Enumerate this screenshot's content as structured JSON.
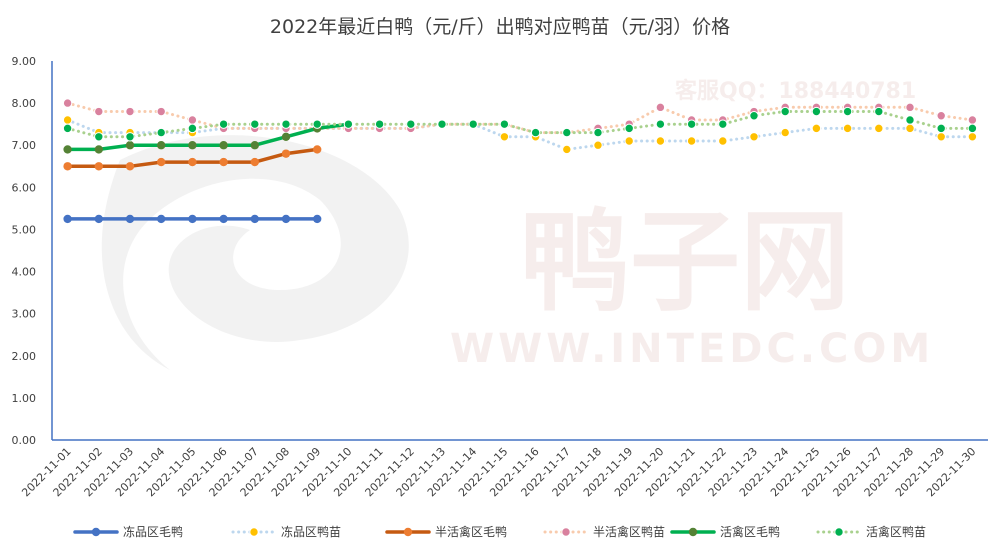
{
  "chart_data": {
    "type": "line",
    "title": "2022年最近白鸭（元/斤）出鸭对应鸭苗（元/羽）价格",
    "xlabel": "",
    "ylabel": "",
    "ylim": [
      0,
      9
    ],
    "yticks": [
      "0.00",
      "1.00",
      "2.00",
      "3.00",
      "4.00",
      "5.00",
      "6.00",
      "7.00",
      "8.00",
      "9.00"
    ],
    "grid": false,
    "legend_position": "bottom",
    "categories": [
      "2022-11-01",
      "2022-11-02",
      "2022-11-03",
      "2022-11-04",
      "2022-11-05",
      "2022-11-06",
      "2022-11-07",
      "2022-11-08",
      "2022-11-09",
      "2022-11-10",
      "2022-11-11",
      "2022-11-12",
      "2022-11-13",
      "2022-11-14",
      "2022-11-15",
      "2022-11-16",
      "2022-11-17",
      "2022-11-18",
      "2022-11-19",
      "2022-11-20",
      "2022-11-21",
      "2022-11-22",
      "2022-11-23",
      "2022-11-24",
      "2022-11-25",
      "2022-11-26",
      "2022-11-27",
      "2022-11-28",
      "2022-11-29",
      "2022-11-30"
    ],
    "series": [
      {
        "name": "冻品区毛鸭",
        "style": "solid",
        "color": "#4472c4",
        "marker": "#4472c4",
        "values": [
          5.25,
          5.25,
          5.25,
          5.25,
          5.25,
          5.25,
          5.25,
          5.25,
          5.25,
          null,
          null,
          null,
          null,
          null,
          null,
          null,
          null,
          null,
          null,
          null,
          null,
          null,
          null,
          null,
          null,
          null,
          null,
          null,
          null,
          null
        ]
      },
      {
        "name": "冻品区鸭苗",
        "style": "dotted",
        "color": "#bdd7ee",
        "marker": "#ffc000",
        "values": [
          7.6,
          7.3,
          7.3,
          7.3,
          7.3,
          7.4,
          7.4,
          7.4,
          7.4,
          7.4,
          7.4,
          7.4,
          7.5,
          7.5,
          7.2,
          7.2,
          6.9,
          7.0,
          7.1,
          7.1,
          7.1,
          7.1,
          7.2,
          7.3,
          7.4,
          7.4,
          7.4,
          7.4,
          7.2,
          7.2
        ]
      },
      {
        "name": "半活禽区毛鸭",
        "style": "solid",
        "color": "#c55a11",
        "marker": "#ed7d31",
        "values": [
          6.5,
          6.5,
          6.5,
          6.6,
          6.6,
          6.6,
          6.6,
          6.8,
          6.9,
          null,
          null,
          null,
          null,
          null,
          null,
          null,
          null,
          null,
          null,
          null,
          null,
          null,
          null,
          null,
          null,
          null,
          null,
          null,
          null,
          null
        ]
      },
      {
        "name": "半活禽区鸭苗",
        "style": "dotted",
        "color": "#f8cbad",
        "marker": "#d9819e",
        "values": [
          8.0,
          7.8,
          7.8,
          7.8,
          7.6,
          7.4,
          7.4,
          7.4,
          7.4,
          7.4,
          7.4,
          7.4,
          7.5,
          7.5,
          7.5,
          7.3,
          7.3,
          7.4,
          7.5,
          7.9,
          7.6,
          7.6,
          7.8,
          7.9,
          7.9,
          7.9,
          7.9,
          7.9,
          7.7,
          7.6
        ]
      },
      {
        "name": "活禽区毛鸭",
        "style": "solid",
        "color": "#00b050",
        "marker": "#548235",
        "values": [
          6.9,
          6.9,
          7.0,
          7.0,
          7.0,
          7.0,
          7.0,
          7.2,
          7.4,
          7.5,
          null,
          null,
          null,
          null,
          null,
          null,
          null,
          null,
          null,
          null,
          null,
          null,
          null,
          null,
          null,
          null,
          null,
          null,
          null,
          null
        ]
      },
      {
        "name": "活禽区鸭苗",
        "style": "dotted",
        "color": "#a9d18e",
        "marker": "#00b050",
        "values": [
          7.4,
          7.2,
          7.2,
          7.3,
          7.4,
          7.5,
          7.5,
          7.5,
          7.5,
          7.5,
          7.5,
          7.5,
          7.5,
          7.5,
          7.5,
          7.3,
          7.3,
          7.3,
          7.4,
          7.5,
          7.5,
          7.5,
          7.7,
          7.8,
          7.8,
          7.8,
          7.8,
          7.6,
          7.4,
          7.4
        ]
      }
    ]
  },
  "watermark": {
    "service": "客服QQ：188440781",
    "brand": "鸭子网",
    "url": "WWW.INTEDC.COM"
  }
}
